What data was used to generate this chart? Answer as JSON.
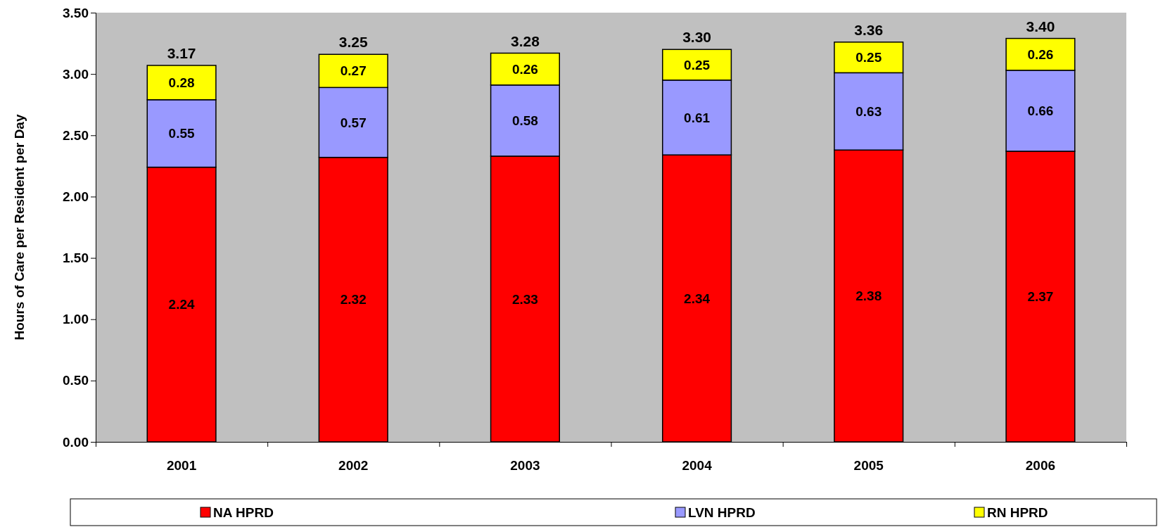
{
  "chart_data": {
    "type": "bar",
    "stacked": true,
    "ylabel": "Hours of Care per Resident per Day",
    "categories": [
      "2001",
      "2002",
      "2003",
      "2004",
      "2005",
      "2006"
    ],
    "series": [
      {
        "name": "NA HPRD",
        "color": "#ff0000",
        "values": [
          2.24,
          2.32,
          2.33,
          2.34,
          2.38,
          2.37
        ]
      },
      {
        "name": "LVN HPRD",
        "color": "#9999ff",
        "values": [
          0.55,
          0.57,
          0.58,
          0.61,
          0.63,
          0.66
        ]
      },
      {
        "name": "RN HPRD",
        "color": "#ffff00",
        "values": [
          0.28,
          0.27,
          0.26,
          0.25,
          0.25,
          0.26
        ]
      }
    ],
    "annotations": [
      {
        "text": "3.17",
        "x": "2001",
        "y": 3.07
      },
      {
        "text": "3.25",
        "x": "2002",
        "y": 3.16
      },
      {
        "text": "3.28",
        "x": "2003",
        "y": 3.17
      },
      {
        "text": "3.30",
        "x": "2004",
        "y": 3.2
      },
      {
        "text": "3.36",
        "x": "2005",
        "y": 3.26
      },
      {
        "text": "3.40",
        "x": "2006",
        "y": 3.29
      }
    ],
    "data_labels": true,
    "ylim": [
      0,
      3.5
    ],
    "yticks": [
      {
        "value": 0,
        "label": "0.00"
      },
      {
        "value": 0.5,
        "label": "0.50"
      },
      {
        "value": 1,
        "label": "1.00"
      },
      {
        "value": 1.5,
        "label": "1.50"
      },
      {
        "value": 2,
        "label": "2.00"
      },
      {
        "value": 2.5,
        "label": "2.50"
      },
      {
        "value": 3,
        "label": "3.00"
      },
      {
        "value": 3.5,
        "label": "3.50"
      }
    ],
    "grid": false,
    "legend": "bottom"
  }
}
